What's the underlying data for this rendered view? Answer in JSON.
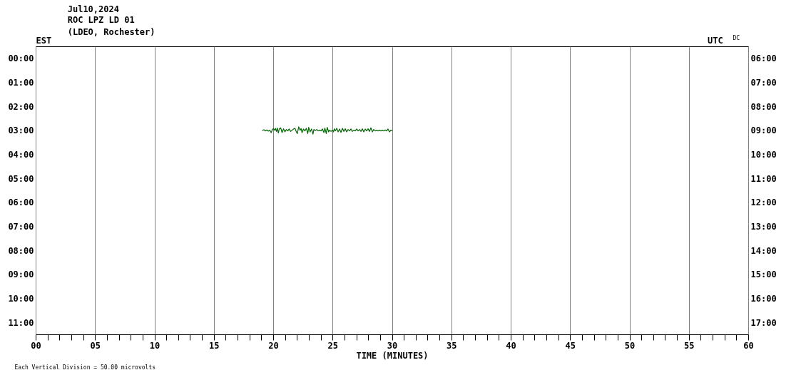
{
  "chart_data": {
    "type": "line",
    "title": "Jul10,2024",
    "subtitle": "ROC LPZ LD 01\n(LDEO, Rochester)",
    "xlabel": "TIME (MINUTES)",
    "ylabel": "EST",
    "y2label": "UTC",
    "annotations": [
      "DC",
      "Each Vertical Division =   50.00 microvolts"
    ],
    "xlim": [
      0,
      60
    ],
    "xticks": [
      {
        "value": 0,
        "label": "00"
      },
      {
        "value": 1,
        "label": null
      },
      {
        "value": 2,
        "label": null
      },
      {
        "value": 3,
        "label": null
      },
      {
        "value": 4,
        "label": null
      },
      {
        "value": 5,
        "label": "05"
      },
      {
        "value": 6,
        "label": null
      },
      {
        "value": 7,
        "label": null
      },
      {
        "value": 8,
        "label": null
      },
      {
        "value": 9,
        "label": null
      },
      {
        "value": 10,
        "label": "10"
      },
      {
        "value": 11,
        "label": null
      },
      {
        "value": 12,
        "label": null
      },
      {
        "value": 13,
        "label": null
      },
      {
        "value": 14,
        "label": null
      },
      {
        "value": 15,
        "label": "15"
      },
      {
        "value": 16,
        "label": null
      },
      {
        "value": 17,
        "label": null
      },
      {
        "value": 18,
        "label": null
      },
      {
        "value": 19,
        "label": null
      },
      {
        "value": 20,
        "label": "20"
      },
      {
        "value": 21,
        "label": null
      },
      {
        "value": 22,
        "label": null
      },
      {
        "value": 23,
        "label": null
      },
      {
        "value": 24,
        "label": null
      },
      {
        "value": 25,
        "label": "25"
      },
      {
        "value": 26,
        "label": null
      },
      {
        "value": 27,
        "label": null
      },
      {
        "value": 28,
        "label": null
      },
      {
        "value": 29,
        "label": null
      },
      {
        "value": 30,
        "label": "30"
      },
      {
        "value": 31,
        "label": null
      },
      {
        "value": 32,
        "label": null
      },
      {
        "value": 33,
        "label": null
      },
      {
        "value": 34,
        "label": null
      },
      {
        "value": 35,
        "label": "35"
      },
      {
        "value": 36,
        "label": null
      },
      {
        "value": 37,
        "label": null
      },
      {
        "value": 38,
        "label": null
      },
      {
        "value": 39,
        "label": null
      },
      {
        "value": 40,
        "label": "40"
      },
      {
        "value": 41,
        "label": null
      },
      {
        "value": 42,
        "label": null
      },
      {
        "value": 43,
        "label": null
      },
      {
        "value": 44,
        "label": null
      },
      {
        "value": 45,
        "label": "45"
      },
      {
        "value": 46,
        "label": null
      },
      {
        "value": 47,
        "label": null
      },
      {
        "value": 48,
        "label": null
      },
      {
        "value": 49,
        "label": null
      },
      {
        "value": 50,
        "label": "50"
      },
      {
        "value": 51,
        "label": null
      },
      {
        "value": 52,
        "label": null
      },
      {
        "value": 53,
        "label": null
      },
      {
        "value": 54,
        "label": null
      },
      {
        "value": 55,
        "label": "55"
      },
      {
        "value": 56,
        "label": null
      },
      {
        "value": 57,
        "label": null
      },
      {
        "value": 58,
        "label": null
      },
      {
        "value": 59,
        "label": null
      },
      {
        "value": 60,
        "label": "60"
      }
    ],
    "ylim": [
      11.5,
      -0.5
    ],
    "yticks": [
      {
        "value": 0,
        "label": "00:00"
      },
      {
        "value": 1,
        "label": "01:00"
      },
      {
        "value": 2,
        "label": "02:00"
      },
      {
        "value": 3,
        "label": "03:00"
      },
      {
        "value": 4,
        "label": "04:00"
      },
      {
        "value": 5,
        "label": "05:00"
      },
      {
        "value": 6,
        "label": "06:00"
      },
      {
        "value": 7,
        "label": "07:00"
      },
      {
        "value": 8,
        "label": "08:00"
      },
      {
        "value": 9,
        "label": "09:00"
      },
      {
        "value": 10,
        "label": "10:00"
      },
      {
        "value": 11,
        "label": "11:00"
      }
    ],
    "y2lim": [
      17.5,
      5.5
    ],
    "y2ticks": [
      {
        "value": 6,
        "label": "06:00"
      },
      {
        "value": 7,
        "label": "07:00"
      },
      {
        "value": 8,
        "label": "08:00"
      },
      {
        "value": 9,
        "label": "09:00"
      },
      {
        "value": 10,
        "label": "10:00"
      },
      {
        "value": 11,
        "label": "11:00"
      },
      {
        "value": 12,
        "label": "12:00"
      },
      {
        "value": 13,
        "label": "13:00"
      },
      {
        "value": 14,
        "label": "14:00"
      },
      {
        "value": 15,
        "label": "15:00"
      },
      {
        "value": 16,
        "label": "16:00"
      },
      {
        "value": 17,
        "label": "17:00"
      }
    ],
    "grid": "x",
    "color": "#006400",
    "x": [
      19.04,
      19.2,
      19.32,
      19.44,
      19.56,
      19.68,
      19.8,
      19.92,
      20.0,
      20.08,
      20.16,
      20.24,
      20.32,
      20.4,
      20.48,
      20.6,
      20.72,
      20.84,
      20.96,
      21.08,
      21.2,
      21.32,
      21.44,
      21.56,
      21.68,
      21.8,
      21.92,
      22.0,
      22.12,
      22.24,
      22.32,
      22.4,
      22.52,
      22.64,
      22.76,
      22.88,
      22.96,
      23.08,
      23.2,
      23.32,
      23.4,
      23.52,
      23.64,
      23.76,
      23.88,
      24.0,
      24.12,
      24.24,
      24.32,
      24.44,
      24.52,
      24.64,
      24.72,
      24.84,
      24.96,
      25.04,
      25.12,
      25.2,
      25.32,
      25.44,
      25.56,
      25.68,
      25.8,
      25.92,
      26.04,
      26.16,
      26.28,
      26.4,
      26.52,
      26.64,
      26.76,
      26.88,
      27.0,
      27.12,
      27.24,
      27.36,
      27.48,
      27.6,
      27.72,
      27.84,
      27.96,
      28.08,
      28.2,
      28.32,
      28.44,
      28.56,
      28.68,
      28.8,
      28.92,
      29.04,
      29.16,
      29.28,
      29.4,
      29.52,
      29.64,
      29.76,
      29.88,
      30.0
    ],
    "values": [
      3.0,
      2.96,
      3.01,
      2.97,
      3.02,
      2.98,
      3.08,
      2.93,
      2.92,
      2.98,
      2.9,
      3.03,
      2.89,
      3.1,
      2.93,
      2.88,
      3.08,
      2.92,
      3.05,
      2.95,
      3.01,
      2.93,
      3.03,
      2.98,
      2.93,
      2.9,
      3.05,
      3.12,
      2.84,
      2.98,
      2.91,
      3.08,
      2.93,
      3.01,
      2.9,
      3.12,
      2.86,
      3.05,
      2.93,
      3.14,
      2.95,
      2.99,
      2.95,
      3.01,
      2.98,
      3.01,
      2.93,
      3.08,
      2.89,
      3.12,
      2.86,
      3.05,
      2.98,
      3.03,
      2.98,
      3.05,
      2.92,
      3.01,
      2.9,
      3.05,
      2.93,
      3.07,
      2.9,
      3.03,
      2.92,
      3.05,
      2.95,
      3.01,
      2.93,
      3.03,
      2.98,
      3.01,
      2.93,
      3.01,
      2.95,
      3.03,
      2.92,
      3.05,
      2.93,
      3.01,
      2.92,
      3.03,
      2.88,
      3.05,
      2.95,
      3.01,
      2.98,
      3.01,
      2.98,
      3.01,
      2.98,
      3.01,
      2.97,
      3.01,
      2.93,
      3.05,
      2.98,
      3.0
    ]
  }
}
